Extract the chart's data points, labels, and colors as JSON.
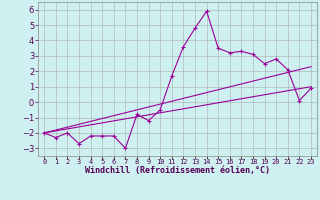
{
  "xlabel": "Windchill (Refroidissement éolien,°C)",
  "x_data": [
    0,
    1,
    2,
    3,
    4,
    5,
    6,
    7,
    8,
    9,
    10,
    11,
    12,
    13,
    14,
    15,
    16,
    17,
    18,
    19,
    20,
    21,
    22,
    23
  ],
  "y_data": [
    -2.0,
    -2.3,
    -2.0,
    -2.7,
    -2.2,
    -2.2,
    -2.2,
    -3.0,
    -0.8,
    -1.2,
    -0.5,
    1.7,
    3.6,
    4.8,
    5.9,
    3.5,
    3.2,
    3.3,
    3.1,
    2.5,
    2.8,
    2.1,
    0.1,
    0.9
  ],
  "trend_x": [
    0,
    23
  ],
  "trend_y": [
    -2.0,
    1.0
  ],
  "trend2_x": [
    0,
    23
  ],
  "trend2_y": [
    -2.0,
    2.3
  ],
  "bg_color": "#cff0f0",
  "grid_color": "#aaaaaa",
  "line_color": "#990099",
  "ylim": [
    -3.5,
    6.5
  ],
  "xlim": [
    -0.5,
    23.5
  ],
  "yticks": [
    -3,
    -2,
    -1,
    0,
    1,
    2,
    3,
    4,
    5,
    6
  ],
  "xtick_labels": [
    "0",
    "1",
    "2",
    "3",
    "4",
    "5",
    "6",
    "7",
    "8",
    "9",
    "10",
    "11",
    "12",
    "13",
    "14",
    "15",
    "16",
    "17",
    "18",
    "19",
    "20",
    "21",
    "22",
    "23"
  ],
  "ytick_fontsize": 6,
  "xtick_fontsize": 5,
  "xlabel_fontsize": 6
}
